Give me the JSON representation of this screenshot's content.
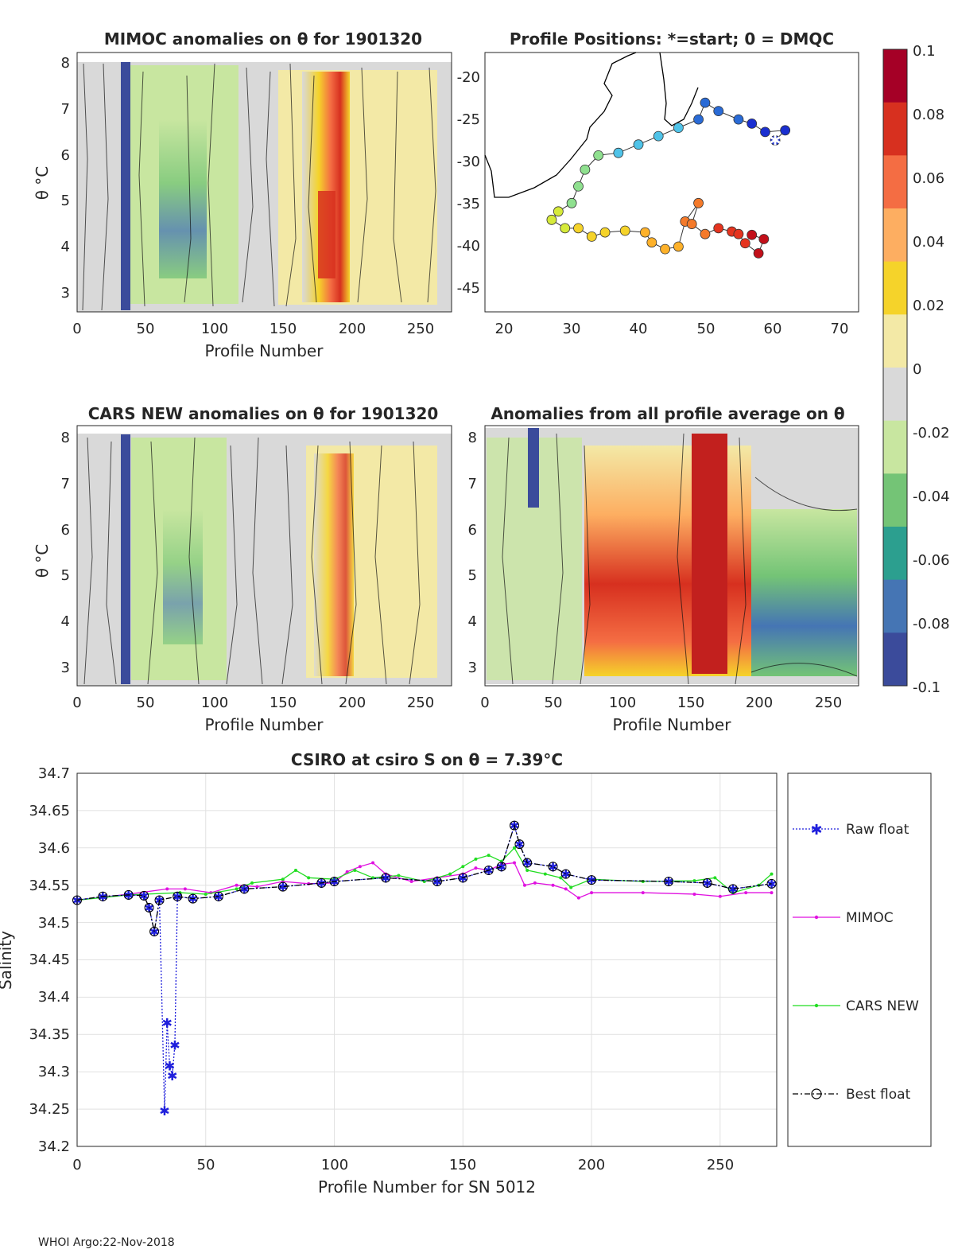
{
  "footer": "WHOI Argo:22-Nov-2018",
  "colorbar": {
    "ticks": [
      "0.1",
      "0.08",
      "0.06",
      "0.04",
      "0.02",
      "0",
      "-0.02",
      "-0.04",
      "-0.06",
      "-0.08",
      "-0.1"
    ],
    "colors": [
      "#a50026",
      "#d7301f",
      "#f46d43",
      "#fdae61",
      "#f5d32a",
      "#f3e9a6",
      "#d9d9d9",
      "#c8e6a0",
      "#74c476",
      "#2c9f8f",
      "#4575b4",
      "#3b4b9b"
    ]
  },
  "panels": {
    "mimoc": {
      "title": "MIMOC anomalies on θ  for 1901320",
      "xlabel": "Profile Number",
      "ylabel": "θ °C",
      "xticks": [
        "0",
        "50",
        "100",
        "150",
        "200",
        "250"
      ],
      "yticks": [
        "3",
        "4",
        "5",
        "6",
        "7",
        "8"
      ]
    },
    "map": {
      "title": "Profile Positions: *=start; 0 = DMQC",
      "xticks": [
        "20",
        "30",
        "40",
        "50",
        "60",
        "70"
      ],
      "yticks": [
        "-20",
        "-25",
        "-30",
        "-35",
        "-40",
        "-45"
      ]
    },
    "cars": {
      "title": "CARS NEW anomalies on θ for 1901320",
      "xlabel": "Profile Number",
      "ylabel": "θ °C",
      "xticks": [
        "0",
        "50",
        "100",
        "150",
        "200",
        "250"
      ],
      "yticks": [
        "3",
        "4",
        "5",
        "6",
        "7",
        "8"
      ]
    },
    "avg": {
      "title": "Anomalies from all profile average on θ",
      "xlabel": "Profile Number",
      "xticks": [
        "0",
        "50",
        "100",
        "150",
        "200",
        "250"
      ],
      "yticks": [
        "3",
        "4",
        "5",
        "6",
        "7",
        "8"
      ]
    }
  },
  "chart_data": [
    {
      "type": "heatmap",
      "title": "MIMOC anomalies on θ  for 1901320",
      "xlabel": "Profile Number",
      "ylabel": "θ °C",
      "xlim": [
        0,
        272
      ],
      "ylim": [
        2.6,
        8.2
      ],
      "clim": [
        -0.1,
        0.1
      ]
    },
    {
      "type": "scatter",
      "title": "Profile Positions: *=start; 0 = DMQC",
      "xlim": [
        17,
        73
      ],
      "ylim": [
        -48,
        -17
      ],
      "positions": [
        [
          60.5,
          -27.5
        ],
        [
          62,
          -26.3
        ],
        [
          59,
          -26.5
        ],
        [
          57,
          -25.5
        ],
        [
          55,
          -25
        ],
        [
          52,
          -24
        ],
        [
          50,
          -23
        ],
        [
          49,
          -25
        ],
        [
          46,
          -26
        ],
        [
          43,
          -27
        ],
        [
          40,
          -28
        ],
        [
          37,
          -29
        ],
        [
          34,
          -29.3
        ],
        [
          32,
          -31
        ],
        [
          31,
          -33
        ],
        [
          30,
          -35
        ],
        [
          28,
          -36
        ],
        [
          27,
          -37
        ],
        [
          29,
          -38
        ],
        [
          31,
          -38
        ],
        [
          33,
          -39
        ],
        [
          35,
          -38.5
        ],
        [
          38,
          -38.3
        ],
        [
          41,
          -38.5
        ],
        [
          42,
          -39.7
        ],
        [
          44,
          -40.5
        ],
        [
          46,
          -40.2
        ],
        [
          47,
          -37.2
        ],
        [
          49,
          -35
        ],
        [
          48,
          -37.5
        ],
        [
          50,
          -38.7
        ],
        [
          52,
          -38
        ],
        [
          54,
          -38.4
        ],
        [
          55,
          -38.7
        ],
        [
          56,
          -39.8
        ],
        [
          58,
          -41
        ],
        [
          58.8,
          -39.3
        ],
        [
          57,
          -38.8
        ]
      ]
    },
    {
      "type": "heatmap",
      "title": "CARS NEW anomalies on θ for 1901320",
      "xlabel": "Profile Number",
      "ylabel": "θ °C",
      "xlim": [
        0,
        272
      ],
      "ylim": [
        2.6,
        8.2
      ],
      "clim": [
        -0.1,
        0.1
      ]
    },
    {
      "type": "heatmap",
      "title": "Anomalies from all profile average on θ",
      "xlabel": "Profile Number",
      "xlim": [
        0,
        272
      ],
      "ylim": [
        2.6,
        8.2
      ],
      "clim": [
        -0.1,
        0.1
      ]
    },
    {
      "type": "line",
      "title": "CSIRO at csiro S on θ = 7.39°C",
      "xlabel": "Profile Number for SN 5012",
      "ylabel": "Salinity",
      "xlim": [
        0,
        272
      ],
      "ylim": [
        34.2,
        34.7
      ],
      "xticks": [
        "0",
        "50",
        "100",
        "150",
        "200",
        "250"
      ],
      "yticks": [
        "34.2",
        "34.25",
        "34.3",
        "34.35",
        "34.4",
        "34.45",
        "34.5",
        "34.55",
        "34.6",
        "34.65",
        "34.7"
      ],
      "grid": true,
      "legend_position": "right",
      "series": [
        {
          "name": "Raw float",
          "color": "#1f1fdc",
          "style": "dotted",
          "points": [
            [
              0,
              34.53
            ],
            [
              10,
              34.535
            ],
            [
              20,
              34.537
            ],
            [
              26,
              34.536
            ],
            [
              28,
              34.52
            ],
            [
              30,
              34.488
            ],
            [
              32,
              34.53
            ],
            [
              34,
              34.248
            ],
            [
              35,
              34.366
            ],
            [
              36,
              34.308
            ],
            [
              37,
              34.295
            ],
            [
              38,
              34.336
            ],
            [
              39,
              34.535
            ],
            [
              45,
              34.532
            ],
            [
              55,
              34.535
            ],
            [
              65,
              34.545
            ],
            [
              80,
              34.548
            ],
            [
              95,
              34.553
            ],
            [
              100,
              34.555
            ],
            [
              120,
              34.56
            ],
            [
              140,
              34.555
            ],
            [
              150,
              34.56
            ],
            [
              160,
              34.57
            ],
            [
              165,
              34.575
            ],
            [
              170,
              34.63
            ],
            [
              172,
              34.605
            ],
            [
              175,
              34.58
            ],
            [
              185,
              34.575
            ],
            [
              190,
              34.565
            ],
            [
              200,
              34.557
            ],
            [
              230,
              34.555
            ],
            [
              245,
              34.553
            ],
            [
              255,
              34.545
            ],
            [
              270,
              34.552
            ]
          ]
        },
        {
          "name": "MIMOC",
          "color": "#e012e0",
          "style": "solid",
          "points": [
            [
              0,
              34.53
            ],
            [
              20,
              34.538
            ],
            [
              35,
              34.545
            ],
            [
              42,
              34.545
            ],
            [
              52,
              34.54
            ],
            [
              62,
              34.55
            ],
            [
              70,
              34.548
            ],
            [
              80,
              34.555
            ],
            [
              90,
              34.552
            ],
            [
              100,
              34.553
            ],
            [
              105,
              34.568
            ],
            [
              110,
              34.575
            ],
            [
              115,
              34.58
            ],
            [
              120,
              34.565
            ],
            [
              130,
              34.555
            ],
            [
              140,
              34.56
            ],
            [
              150,
              34.565
            ],
            [
              155,
              34.573
            ],
            [
              160,
              34.57
            ],
            [
              165,
              34.578
            ],
            [
              170,
              34.58
            ],
            [
              174,
              34.55
            ],
            [
              178,
              34.553
            ],
            [
              185,
              34.55
            ],
            [
              190,
              34.545
            ],
            [
              195,
              34.533
            ],
            [
              200,
              34.54
            ],
            [
              220,
              34.54
            ],
            [
              240,
              34.538
            ],
            [
              250,
              34.535
            ],
            [
              260,
              34.54
            ],
            [
              270,
              34.54
            ]
          ]
        },
        {
          "name": "CARS NEW",
          "color": "#22dd22",
          "style": "solid",
          "points": [
            [
              0,
              34.53
            ],
            [
              20,
              34.537
            ],
            [
              40,
              34.54
            ],
            [
              50,
              34.538
            ],
            [
              62,
              34.545
            ],
            [
              68,
              34.553
            ],
            [
              80,
              34.558
            ],
            [
              85,
              34.57
            ],
            [
              90,
              34.56
            ],
            [
              100,
              34.558
            ],
            [
              108,
              34.57
            ],
            [
              115,
              34.56
            ],
            [
              125,
              34.563
            ],
            [
              135,
              34.555
            ],
            [
              145,
              34.565
            ],
            [
              150,
              34.575
            ],
            [
              155,
              34.585
            ],
            [
              160,
              34.59
            ],
            [
              165,
              34.582
            ],
            [
              170,
              34.6
            ],
            [
              175,
              34.57
            ],
            [
              182,
              34.565
            ],
            [
              188,
              34.56
            ],
            [
              192,
              34.547
            ],
            [
              200,
              34.558
            ],
            [
              220,
              34.555
            ],
            [
              240,
              34.556
            ],
            [
              248,
              34.56
            ],
            [
              255,
              34.54
            ],
            [
              265,
              34.55
            ],
            [
              270,
              34.565
            ]
          ]
        },
        {
          "name": "Best float",
          "color": "#000000",
          "style": "dashdot",
          "points": [
            [
              0,
              34.53
            ],
            [
              10,
              34.535
            ],
            [
              20,
              34.537
            ],
            [
              26,
              34.536
            ],
            [
              28,
              34.52
            ],
            [
              30,
              34.488
            ],
            [
              32,
              34.53
            ],
            [
              39,
              34.535
            ],
            [
              45,
              34.532
            ],
            [
              55,
              34.535
            ],
            [
              65,
              34.545
            ],
            [
              80,
              34.548
            ],
            [
              95,
              34.553
            ],
            [
              100,
              34.555
            ],
            [
              120,
              34.56
            ],
            [
              140,
              34.555
            ],
            [
              150,
              34.56
            ],
            [
              160,
              34.57
            ],
            [
              165,
              34.575
            ],
            [
              170,
              34.63
            ],
            [
              172,
              34.605
            ],
            [
              175,
              34.58
            ],
            [
              185,
              34.575
            ],
            [
              190,
              34.565
            ],
            [
              200,
              34.557
            ],
            [
              230,
              34.555
            ],
            [
              245,
              34.553
            ],
            [
              255,
              34.545
            ],
            [
              270,
              34.552
            ]
          ]
        }
      ]
    }
  ]
}
